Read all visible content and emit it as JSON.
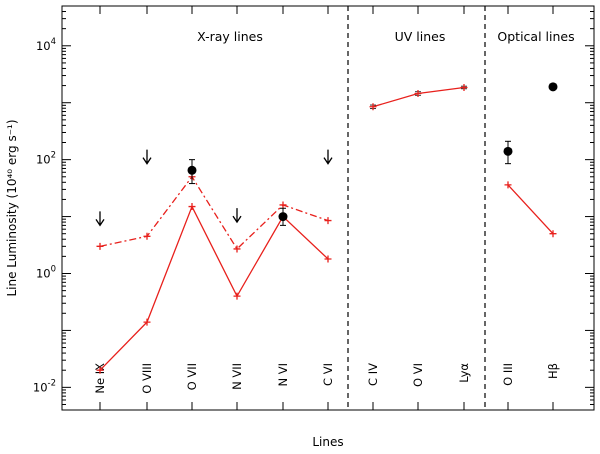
{
  "chart_data": {
    "type": "scatter",
    "y_scale": "log",
    "ylim": [
      0.004,
      50000
    ],
    "xlabel": "Lines",
    "ylabel": "Line Luminosity (10⁴⁰ erg s⁻¹)",
    "y_ticks": [
      {
        "value": 0.01,
        "mantissa": "10",
        "exp": "-2"
      },
      {
        "value": 1,
        "mantissa": "10",
        "exp": "0"
      },
      {
        "value": 100,
        "mantissa": "10",
        "exp": "2"
      },
      {
        "value": 10000,
        "mantissa": "10",
        "exp": "4"
      }
    ],
    "panels": [
      {
        "title": "X-ray lines",
        "categories": [
          "Ne IX",
          "O VIII",
          "O VII",
          "N VII",
          "N VI",
          "C VI"
        ]
      },
      {
        "title": "UV lines",
        "categories": [
          "C IV",
          "O VI",
          "Lyα"
        ]
      },
      {
        "title": "Optical lines",
        "categories": [
          "O III",
          "Hβ"
        ]
      }
    ],
    "series": [
      {
        "style": "solid",
        "color": "#e8201c",
        "marker": "plus",
        "x": [
          "Ne IX",
          "O VIII",
          "O VII",
          "N VII",
          "N VI",
          "C VI"
        ],
        "y": [
          0.02,
          0.14,
          15,
          0.4,
          10,
          1.8
        ]
      },
      {
        "style": "dash-dot",
        "color": "#e8201c",
        "marker": "plus",
        "x": [
          "Ne IX",
          "O VIII",
          "O VII",
          "N VII",
          "N VI",
          "C VI"
        ],
        "y": [
          3,
          4.5,
          50,
          2.7,
          16,
          8.5
        ]
      },
      {
        "style": "solid",
        "color": "#e8201c",
        "marker": "plus-errorbar",
        "x": [
          "C IV",
          "O VI",
          "Lyα"
        ],
        "y": [
          850,
          1450,
          1850
        ],
        "err_lo": [
          790,
          1350,
          1760
        ],
        "err_hi": [
          910,
          1560,
          1950
        ]
      },
      {
        "style": "solid",
        "color": "#e8201c",
        "marker": "plus",
        "x": [
          "O III",
          "Hβ"
        ],
        "y": [
          36,
          5
        ]
      }
    ],
    "observed": [
      {
        "x": "O VII",
        "y": 65,
        "err_lo": 38,
        "err_hi": 100
      },
      {
        "x": "N VI",
        "y": 10,
        "err_lo": 7,
        "err_hi": 14
      },
      {
        "x": "O III",
        "y": 140,
        "err_lo": 85,
        "err_hi": 210
      },
      {
        "x": "Hβ",
        "y": 1900,
        "err_lo": 1900,
        "err_hi": 1900
      }
    ],
    "upper_limits": [
      {
        "x": "Ne IX",
        "y": 7
      },
      {
        "x": "O VIII",
        "y": 85
      },
      {
        "x": "N VII",
        "y": 8
      },
      {
        "x": "C VI",
        "y": 85
      }
    ]
  }
}
